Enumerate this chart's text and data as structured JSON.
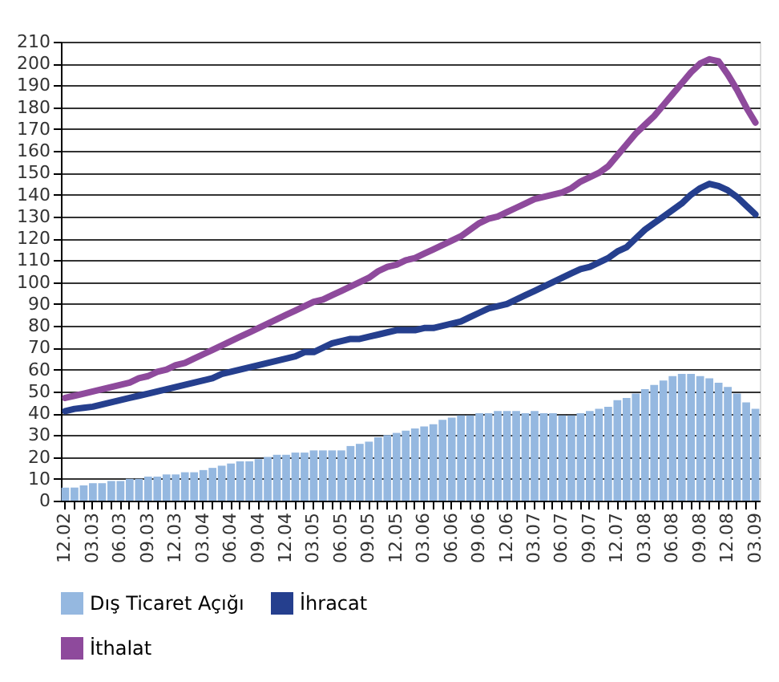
{
  "chart_data": {
    "type": "bar",
    "categories": [
      "12.02",
      null,
      null,
      "03.03",
      null,
      null,
      "06.03",
      null,
      null,
      "09.03",
      null,
      null,
      "12.03",
      null,
      null,
      "03.04",
      null,
      null,
      "06.04",
      null,
      null,
      "09.04",
      null,
      null,
      "12.04",
      null,
      null,
      "03.05",
      null,
      null,
      "06.05",
      null,
      null,
      "09.05",
      null,
      null,
      "12.05",
      null,
      null,
      "03.06",
      null,
      null,
      "06.06",
      null,
      null,
      "09.06",
      null,
      null,
      "12.06",
      null,
      null,
      "03.07",
      null,
      null,
      "06.07",
      null,
      null,
      "09.07",
      null,
      null,
      "12.07",
      null,
      null,
      "03.08",
      null,
      null,
      "06.08",
      null,
      null,
      "09.08",
      null,
      null,
      "12.08",
      null,
      null,
      "03.09"
    ],
    "series": [
      {
        "name": "Dış Ticaret Açığı",
        "color": "#95b8e0",
        "values": [
          6,
          6,
          7,
          8,
          8,
          9,
          9,
          10,
          10,
          11,
          11,
          12,
          12,
          13,
          13,
          14,
          15,
          16,
          17,
          18,
          18,
          19,
          20,
          21,
          21,
          22,
          22,
          23,
          23,
          23,
          23,
          25,
          26,
          27,
          29,
          30,
          31,
          32,
          33,
          34,
          35,
          37,
          38,
          39,
          39,
          40,
          40,
          41,
          41,
          41,
          40,
          41,
          40,
          40,
          39,
          39,
          40,
          41,
          42,
          43,
          46,
          47,
          49,
          51,
          53,
          55,
          57,
          58,
          58,
          57,
          56,
          54,
          52,
          49,
          45,
          42
        ]
      },
      {
        "name": "İhracat",
        "type": "line",
        "color": "#253f8e",
        "values": [
          41,
          42,
          42.5,
          43,
          44,
          45,
          46,
          47,
          48,
          49,
          50,
          51,
          52,
          53,
          54,
          55,
          56,
          58,
          59,
          60,
          61,
          62,
          63,
          64,
          65,
          66,
          68,
          68,
          70,
          72,
          73,
          74,
          74,
          75,
          76,
          77,
          78,
          78,
          78,
          79,
          79,
          80,
          81,
          82,
          84,
          86,
          88,
          89,
          90,
          92,
          94,
          96,
          98,
          100,
          102,
          104,
          106,
          107,
          109,
          111,
          114,
          116,
          120,
          124,
          127,
          130,
          133,
          136,
          140,
          143,
          145,
          144,
          142,
          139,
          135,
          131
        ]
      },
      {
        "name": "İthalat",
        "type": "line",
        "color": "#8e4a9c",
        "values": [
          47,
          48,
          49,
          50,
          51,
          52,
          53,
          54,
          56,
          57,
          59,
          60,
          62,
          63,
          65,
          67,
          69,
          71,
          73,
          75,
          77,
          79,
          81,
          83,
          85,
          87,
          89,
          91,
          92,
          94,
          96,
          98,
          100,
          102,
          105,
          107,
          108,
          110,
          111,
          113,
          115,
          117,
          119,
          121,
          124,
          127,
          129,
          130,
          132,
          134,
          136,
          138,
          139,
          140,
          141,
          143,
          146,
          148,
          150,
          153,
          158,
          163,
          168,
          172,
          176,
          181,
          186,
          191,
          196,
          200,
          202,
          201,
          195,
          188,
          180,
          173
        ]
      }
    ],
    "ylim": [
      0,
      210
    ],
    "yticks": [
      0,
      10,
      20,
      30,
      40,
      50,
      60,
      70,
      80,
      90,
      100,
      110,
      120,
      130,
      140,
      150,
      160,
      170,
      180,
      190,
      200,
      210
    ],
    "grid": "y",
    "legend": "bottom"
  }
}
